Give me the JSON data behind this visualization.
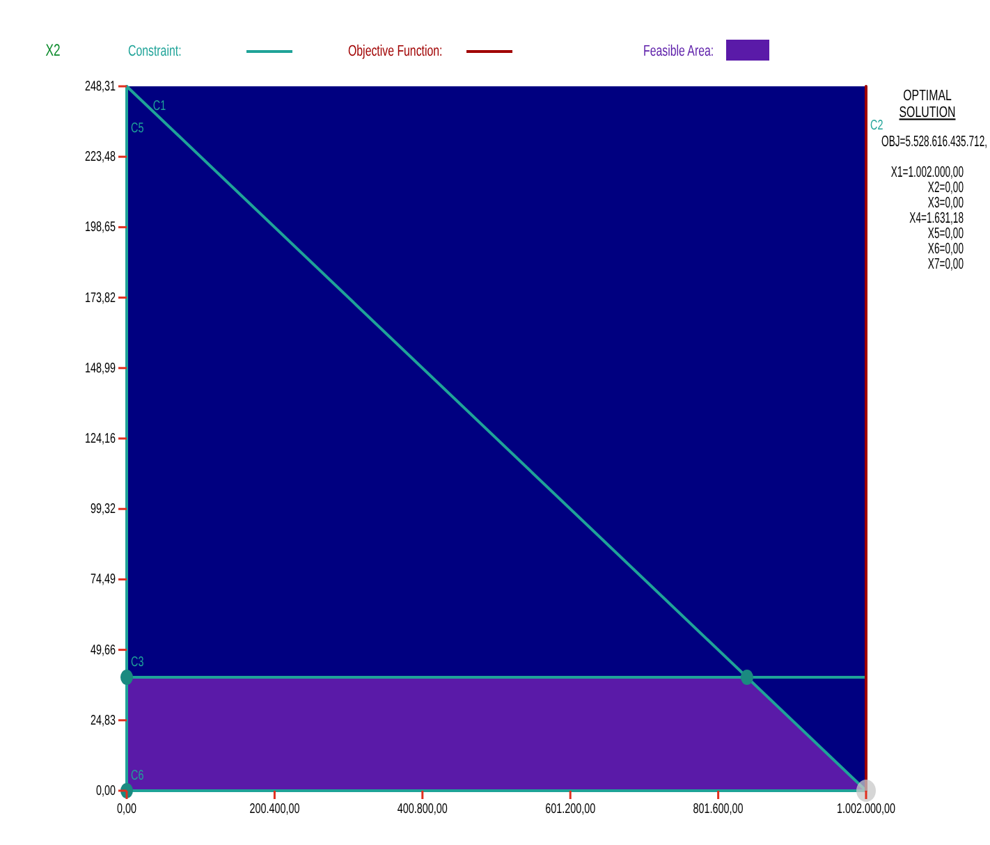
{
  "chart_data": {
    "type": "line",
    "ylabel": "X2",
    "xlim": [
      0,
      1002000
    ],
    "ylim": [
      0,
      248.31
    ],
    "xticks": [
      {
        "value": 0,
        "label": "0,00"
      },
      {
        "value": 200400,
        "label": "200.400,00"
      },
      {
        "value": 400800,
        "label": "400.800,00"
      },
      {
        "value": 601200,
        "label": "601.200,00"
      },
      {
        "value": 801600,
        "label": "801.600,00"
      },
      {
        "value": 1002000,
        "label": "1.002.000,00"
      }
    ],
    "yticks": [
      {
        "value": 0,
        "label": "0,00"
      },
      {
        "value": 24.83,
        "label": "24,83"
      },
      {
        "value": 49.66,
        "label": "49,66"
      },
      {
        "value": 74.49,
        "label": "74,49"
      },
      {
        "value": 99.32,
        "label": "99,32"
      },
      {
        "value": 124.16,
        "label": "124,16"
      },
      {
        "value": 148.99,
        "label": "148,99"
      },
      {
        "value": 173.82,
        "label": "173,82"
      },
      {
        "value": 198.65,
        "label": "198,65"
      },
      {
        "value": 223.48,
        "label": "223,48"
      },
      {
        "value": 248.31,
        "label": "248,31"
      }
    ],
    "grid": false,
    "legend": "top",
    "series": [
      {
        "name": "Constraint:",
        "color": "#1fa398",
        "x": [
          0,
          1002000
        ],
        "values": [
          248.31,
          0
        ]
      },
      {
        "color": "#1fa398",
        "x": [
          0,
          1002000
        ],
        "values": [
          40,
          40
        ]
      },
      {
        "color": "#1fa398",
        "x": [
          0,
          0
        ],
        "values": [
          0,
          248.31
        ]
      },
      {
        "color": "#1fa398",
        "x": [
          0,
          1002000
        ],
        "values": [
          0,
          0
        ]
      },
      {
        "name": "Objective Function:",
        "color": "#a00000",
        "x": [
          1002000,
          1002000
        ],
        "values": [
          0,
          248.31
        ]
      },
      {
        "name": "Feasible Area:",
        "type": "area",
        "color": "#5a1aa8",
        "x": [
          0,
          0,
          840600,
          1002000
        ],
        "values": [
          0,
          40,
          40,
          0
        ]
      },
      {
        "type": "scatter",
        "color": "#1a8a80",
        "x": [
          0,
          840600,
          0
        ],
        "values": [
          40,
          40,
          0
        ]
      },
      {
        "type": "scatter",
        "color": "#c8c8c8",
        "x": [
          1002000
        ],
        "values": [
          0
        ]
      }
    ],
    "title": "OPTIMAL SOLUTION",
    "annotations": [
      {
        "text": "C1",
        "x": 30000,
        "y": 240
      },
      {
        "text": "C5",
        "x": 0,
        "y": 232
      },
      {
        "text": "C2",
        "x": 1002000,
        "y": 233
      },
      {
        "text": "C3",
        "x": 0,
        "y": 44
      },
      {
        "text": "C6",
        "x": 0,
        "y": 4
      },
      "OBJ=5.528.616.435.712,",
      "X1=1.002.000,00",
      "X2=0,00",
      "X3=0,00",
      "X4=1.631,18",
      "X5=0,00",
      "X6=0,00",
      "X7=0,00"
    ]
  }
}
